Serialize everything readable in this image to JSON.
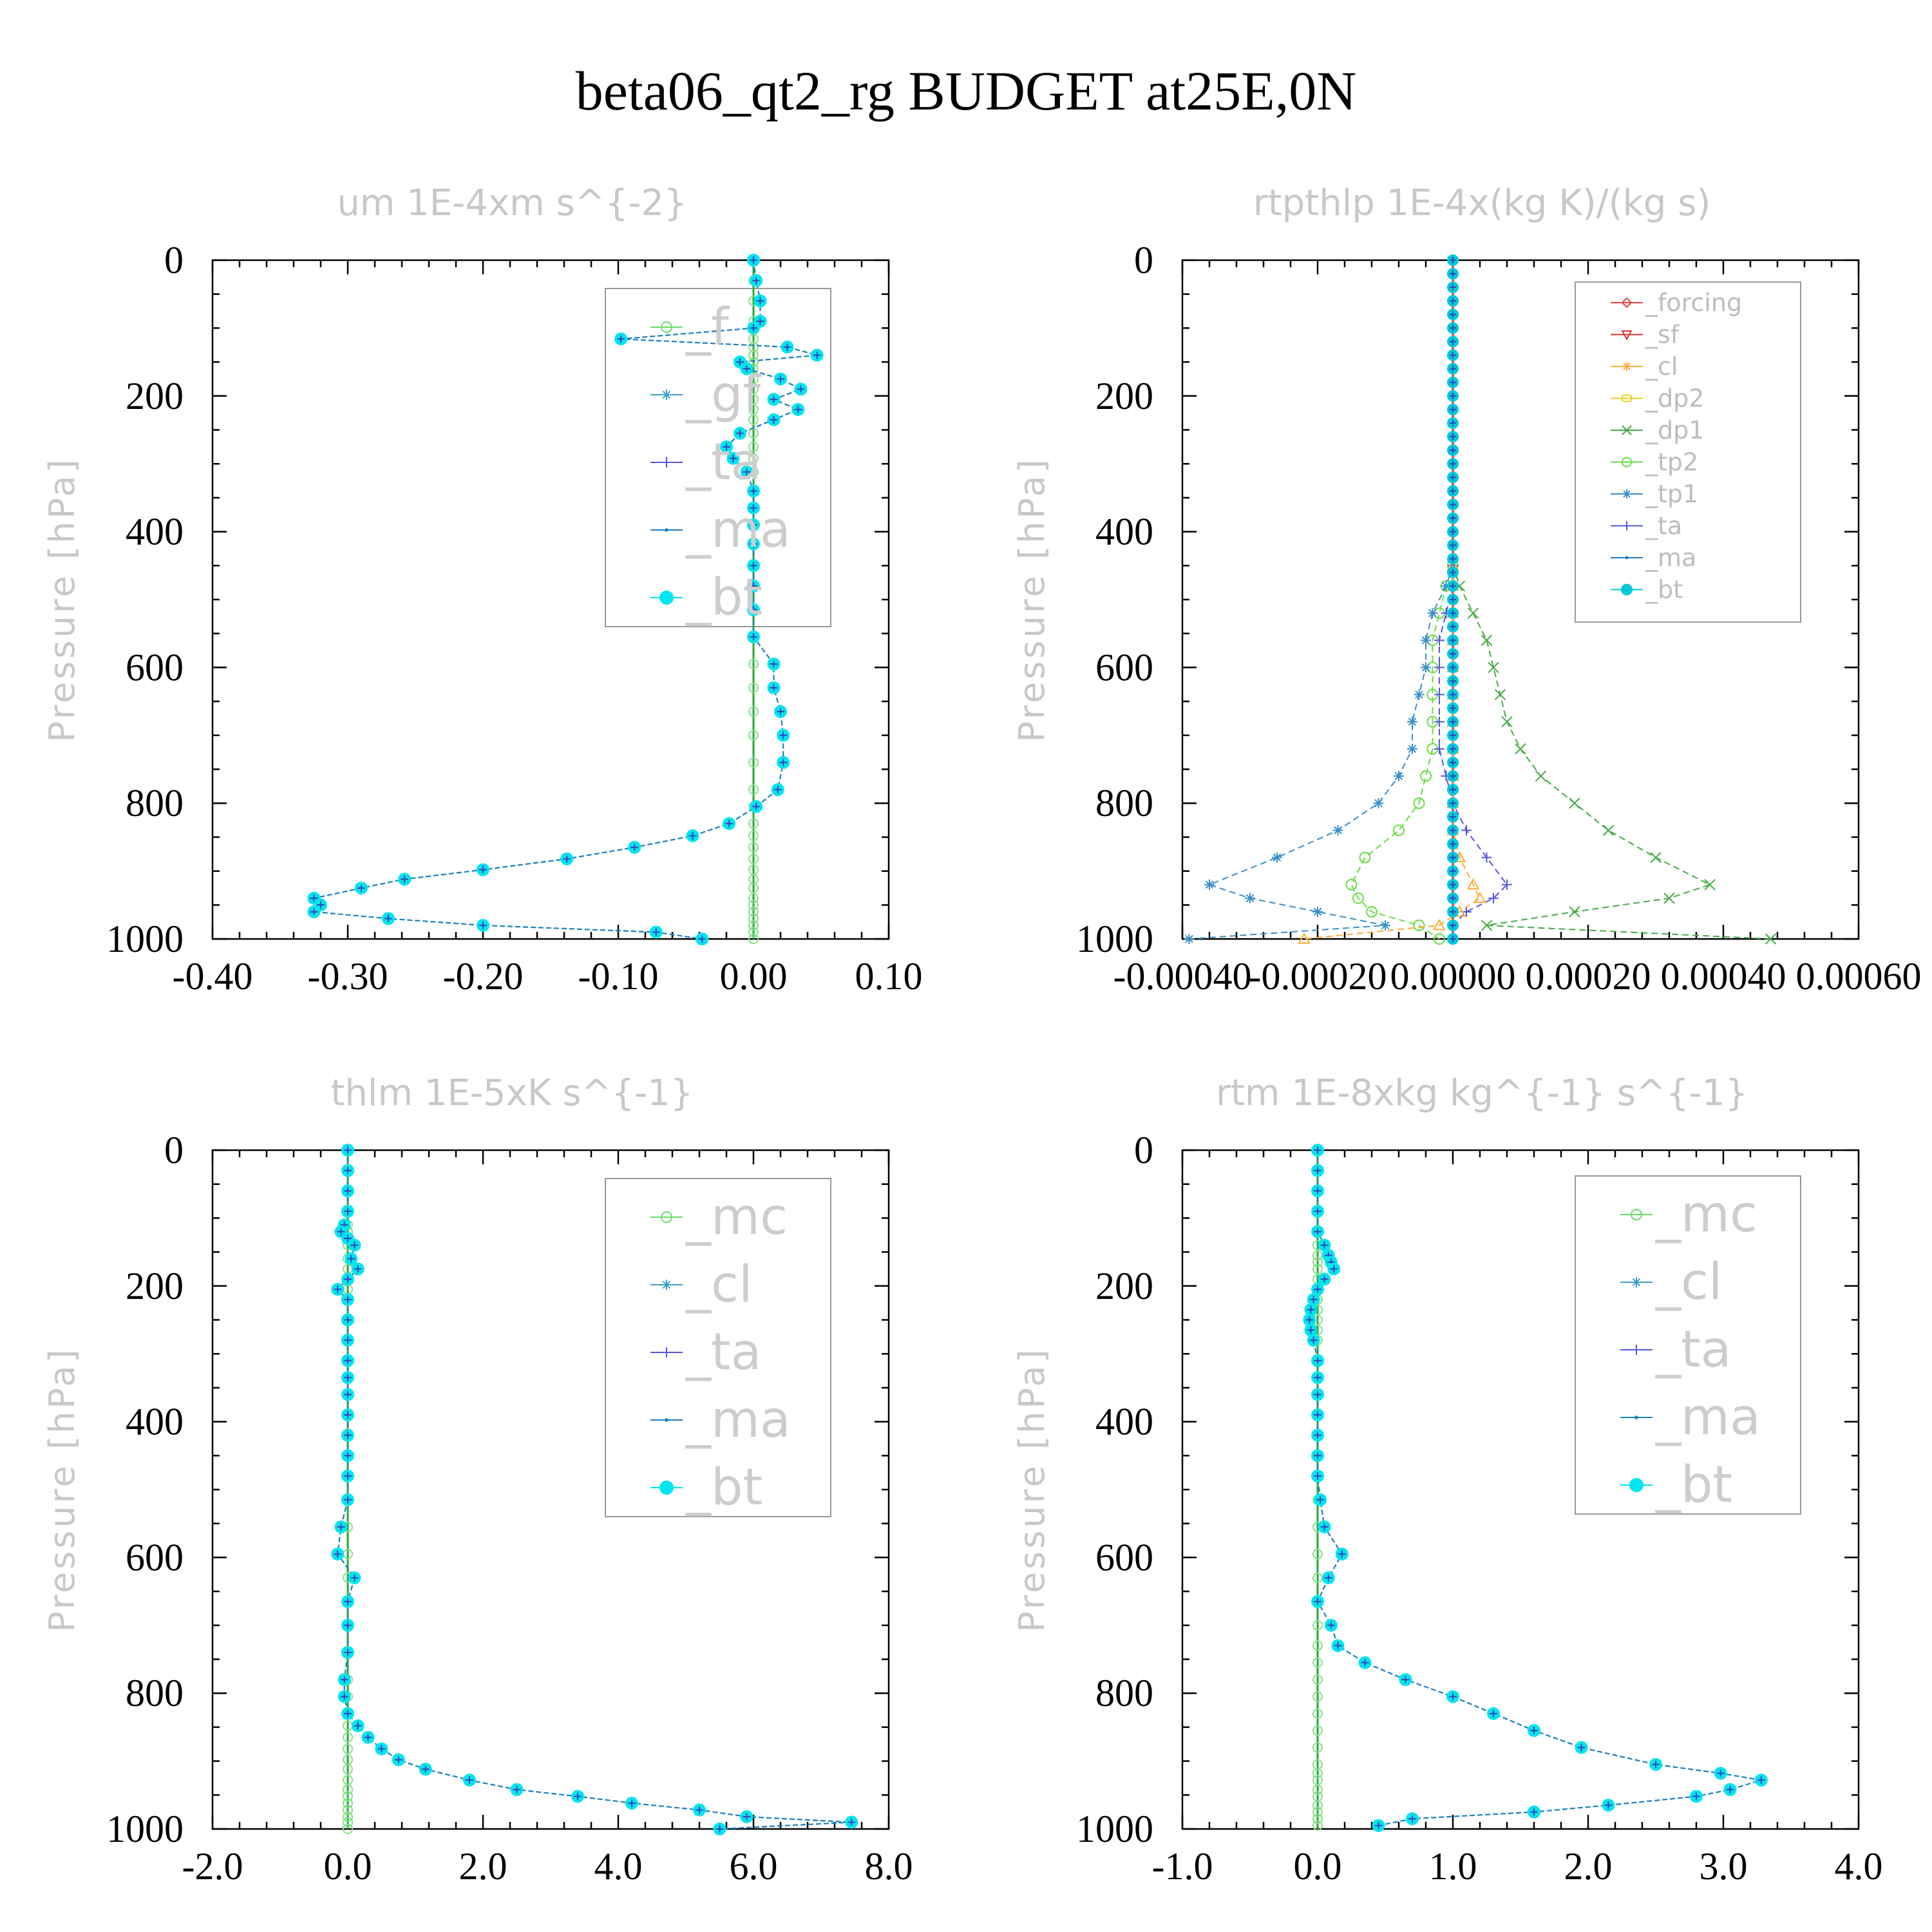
{
  "title": "beta06_qt2_rg  BUDGET at25E,0N",
  "chart_data": [
    {
      "type": "line",
      "title": "um  1E-4xm s^{-2}",
      "ylabel": "Pressure [hPa]",
      "ylim": [
        1000,
        0
      ],
      "xlim": [
        -0.4,
        0.1
      ],
      "xticks": [
        "-0.40",
        "-0.30",
        "-0.20",
        "-0.10",
        "0.00",
        "0.10"
      ],
      "yticks": [
        "0",
        "200",
        "400",
        "600",
        "800",
        "1000"
      ],
      "legend_style": "big",
      "legend": [
        "_f",
        "_gf",
        "_ta",
        "_ma",
        "_bt"
      ],
      "colors": {
        "_f": "#66dd66",
        "_gf": "#3aa0c8",
        "_ta": "#5555dd",
        "_ma": "#1a7fc0",
        "_bt": "#00e5ee",
        "zero": "#22aa33"
      },
      "profile": {
        "p": [
          0,
          30,
          60,
          90,
          100,
          116,
          128,
          140,
          150,
          160,
          175,
          190,
          205,
          220,
          235,
          255,
          275,
          292,
          312,
          340,
          365,
          390,
          418,
          450,
          480,
          515,
          555,
          595,
          630,
          665,
          700,
          740,
          780,
          805,
          830,
          848,
          865,
          882,
          898,
          912,
          925,
          940,
          950,
          960,
          970,
          980,
          990,
          1000
        ],
        "bt": [
          0.0,
          0.002,
          0.005,
          0.005,
          0.0,
          -0.098,
          0.025,
          0.047,
          -0.01,
          -0.005,
          0.02,
          0.035,
          0.015,
          0.033,
          0.015,
          -0.01,
          -0.02,
          -0.015,
          -0.005,
          0.0,
          0.0,
          0.0,
          0.0,
          0.0,
          0.0,
          0.0,
          0.0,
          0.015,
          0.015,
          0.02,
          0.022,
          0.022,
          0.018,
          0.002,
          -0.018,
          -0.045,
          -0.088,
          -0.138,
          -0.2,
          -0.258,
          -0.29,
          -0.325,
          -0.32,
          -0.325,
          -0.27,
          -0.2,
          -0.072,
          -0.038
        ]
      }
    },
    {
      "type": "line",
      "title": "rtpthlp  1E-4x(kg K)/(kg s)",
      "ylabel": "Pressure [hPa]",
      "ylim": [
        1000,
        0
      ],
      "xlim": [
        -0.0004,
        0.0006
      ],
      "xticks": [
        "-0.00040",
        "-0.00020",
        "0.00000",
        "0.00020",
        "0.00040",
        "0.00060"
      ],
      "yticks": [
        "0",
        "200",
        "400",
        "600",
        "800",
        "1000"
      ],
      "legend_style": "small",
      "legend": [
        "_forcing",
        "_sf",
        "_cl",
        "_dp2",
        "_dp1",
        "_tp2",
        "_tp1",
        "_ta",
        "_ma",
        "_bt"
      ],
      "colors": {
        "_forcing": "#dd4444",
        "_sf": "#dd3333",
        "_cl": "#ffaa33",
        "_dp2": "#e6d020",
        "_dp1": "#44aa44",
        "_tp2": "#66dd44",
        "_tp1": "#3a8fc8",
        "_ta": "#5555dd",
        "_ma": "#1a7fc0",
        "_bt": "#00c8d8",
        "zero": "#cc3322"
      },
      "profiles": {
        "p": [
          450,
          480,
          520,
          560,
          600,
          640,
          680,
          720,
          760,
          800,
          840,
          880,
          920,
          940,
          960,
          980,
          1000
        ],
        "dp1": [
          0.0,
          1e-05,
          3e-05,
          5e-05,
          6e-05,
          7e-05,
          8e-05,
          0.0001,
          0.00013,
          0.00018,
          0.00023,
          0.0003,
          0.00038,
          0.00032,
          0.00018,
          5e-05,
          0.00047
        ],
        "tp2": [
          0.0,
          -1e-05,
          -2e-05,
          -3e-05,
          -3e-05,
          -3e-05,
          -3e-05,
          -3e-05,
          -4e-05,
          -5e-05,
          -8e-05,
          -0.00013,
          -0.00015,
          -0.00014,
          -0.00012,
          -5e-05,
          -2e-05
        ],
        "tp1": [
          0.0,
          -1e-05,
          -3e-05,
          -4e-05,
          -4e-05,
          -5e-05,
          -6e-05,
          -6e-05,
          -8e-05,
          -0.00011,
          -0.00017,
          -0.00026,
          -0.00036,
          -0.0003,
          -0.0002,
          -0.0001,
          -0.00039
        ],
        "ta": [
          0.0,
          0.0,
          -1e-05,
          -2e-05,
          -2e-05,
          -2e-05,
          -2e-05,
          -2e-05,
          -1e-05,
          0.0,
          2e-05,
          5e-05,
          8e-05,
          6e-05,
          2e-05,
          0.0,
          0.0
        ],
        "cl": [
          0.0,
          0.0,
          0.0,
          0.0,
          0.0,
          0.0,
          0.0,
          0.0,
          0.0,
          0.0,
          0.0,
          1e-05,
          3e-05,
          4e-05,
          1e-05,
          -2e-05,
          -0.00022
        ]
      }
    },
    {
      "type": "line",
      "title": "thlm  1E-5xK s^{-1}",
      "ylabel": "Pressure [hPa]",
      "ylim": [
        1000,
        0
      ],
      "xlim": [
        -2.0,
        8.0
      ],
      "xticks": [
        "-2.0",
        "0.0",
        "2.0",
        "4.0",
        "6.0",
        "8.0"
      ],
      "yticks": [
        "0",
        "200",
        "400",
        "600",
        "800",
        "1000"
      ],
      "legend_style": "big",
      "legend": [
        "_mc",
        "_cl",
        "_ta",
        "_ma",
        "_bt"
      ],
      "colors": {
        "_mc": "#66dd66",
        "_cl": "#3aa0c8",
        "_ta": "#5555dd",
        "_ma": "#1a7fc0",
        "_bt": "#00e5ee",
        "zero": "#22aa33"
      },
      "profile": {
        "p": [
          0,
          30,
          60,
          90,
          110,
          120,
          130,
          140,
          160,
          175,
          190,
          205,
          220,
          250,
          280,
          310,
          335,
          360,
          390,
          420,
          450,
          480,
          515,
          555,
          595,
          630,
          665,
          700,
          740,
          780,
          805,
          830,
          848,
          865,
          882,
          898,
          912,
          928,
          942,
          952,
          962,
          972,
          982,
          990,
          1000
        ],
        "bt": [
          0.0,
          0.0,
          0.0,
          0.0,
          -0.05,
          -0.1,
          0.0,
          0.1,
          0.05,
          0.15,
          0.0,
          -0.15,
          0.0,
          0.0,
          0.0,
          0.0,
          0.0,
          0.0,
          0.0,
          0.0,
          0.0,
          0.0,
          0.0,
          -0.1,
          -0.15,
          0.1,
          0.0,
          0.0,
          0.0,
          -0.05,
          -0.05,
          0.0,
          0.15,
          0.3,
          0.5,
          0.75,
          1.15,
          1.8,
          2.5,
          3.4,
          4.2,
          5.2,
          5.9,
          7.45,
          5.5
        ]
      }
    },
    {
      "type": "line",
      "title": "rtm  1E-8xkg kg^{-1} s^{-1}",
      "ylabel": "Pressure [hPa]",
      "ylim": [
        1000,
        0
      ],
      "xlim": [
        -1.0,
        4.0
      ],
      "xticks": [
        "-1.0",
        "0.0",
        "1.0",
        "2.0",
        "3.0",
        "4.0"
      ],
      "yticks": [
        "0",
        "200",
        "400",
        "600",
        "800",
        "1000"
      ],
      "legend_style": "big",
      "legend": [
        "_mc",
        "_cl",
        "_ta",
        "_ma",
        "_bt"
      ],
      "colors": {
        "_mc": "#66dd66",
        "_cl": "#3aa0c8",
        "_ta": "#5555dd",
        "_ma": "#1a7fc0",
        "_bt": "#00e5ee",
        "zero": "#22aa33"
      },
      "profile": {
        "p": [
          0,
          30,
          60,
          90,
          120,
          140,
          155,
          165,
          175,
          190,
          205,
          220,
          235,
          250,
          265,
          280,
          310,
          335,
          360,
          390,
          420,
          450,
          480,
          515,
          555,
          595,
          630,
          665,
          700,
          730,
          755,
          780,
          805,
          830,
          855,
          880,
          905,
          918,
          928,
          942,
          952,
          965,
          975,
          985,
          995
        ],
        "bt": [
          0.0,
          0.0,
          0.0,
          0.0,
          0.0,
          0.05,
          0.08,
          0.1,
          0.12,
          0.05,
          0.0,
          -0.03,
          -0.05,
          -0.06,
          -0.05,
          -0.03,
          0.0,
          0.0,
          0.0,
          0.0,
          0.0,
          0.0,
          0.0,
          0.02,
          0.05,
          0.18,
          0.08,
          0.0,
          0.1,
          0.15,
          0.35,
          0.65,
          1.0,
          1.3,
          1.6,
          1.95,
          2.5,
          2.98,
          3.28,
          3.05,
          2.8,
          2.15,
          1.6,
          0.7,
          0.45
        ]
      }
    }
  ]
}
